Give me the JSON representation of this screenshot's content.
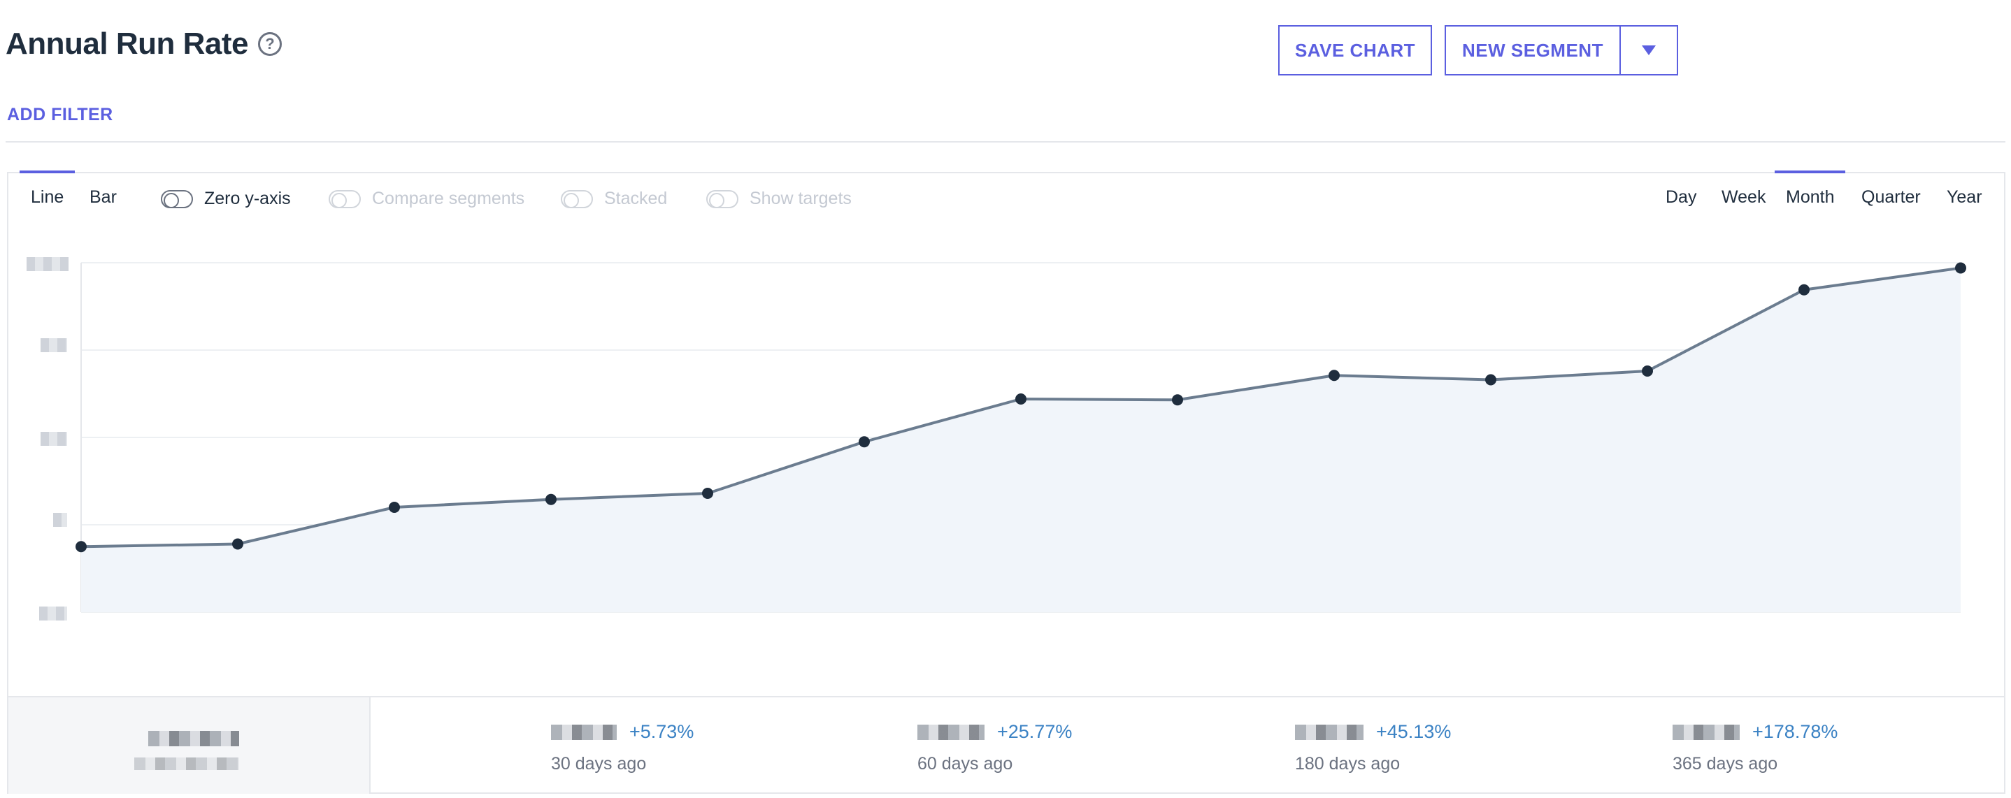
{
  "header": {
    "title": "Annual Run Rate",
    "help_icon": "?",
    "save_label": "SAVE CHART",
    "new_segment_label": "NEW SEGMENT",
    "add_filter_label": "ADD FILTER"
  },
  "toolbar": {
    "chart_types": [
      "Line",
      "Bar"
    ],
    "active_chart_type": "Line",
    "toggles": [
      {
        "label": "Zero y-axis",
        "enabled": true
      },
      {
        "label": "Compare segments",
        "enabled": false
      },
      {
        "label": "Stacked",
        "enabled": false
      },
      {
        "label": "Show targets",
        "enabled": false
      }
    ],
    "periods": [
      "Day",
      "Week",
      "Month",
      "Quarter",
      "Year"
    ],
    "active_period": "Month"
  },
  "chart_data": {
    "type": "area",
    "x": [
      1,
      2,
      3,
      4,
      5,
      6,
      7,
      8,
      9,
      10,
      11,
      12,
      13
    ],
    "series": [
      {
        "values": [
          0.75,
          0.78,
          1.2,
          1.29,
          1.36,
          1.95,
          2.44,
          2.43,
          2.71,
          2.66,
          2.76,
          3.69,
          3.94
        ]
      }
    ],
    "ylim": [
      0,
      4
    ],
    "grid": true,
    "colors": {
      "line": "#6b7c8f",
      "fill": "#f1f5fa",
      "point": "#1f2d3d"
    }
  },
  "stats": [
    {
      "change": "+5.73%",
      "label": "30 days ago"
    },
    {
      "change": "+25.77%",
      "label": "60 days ago"
    },
    {
      "change": "+45.13%",
      "label": "180 days ago"
    },
    {
      "change": "+178.78%",
      "label": "365 days ago"
    }
  ],
  "colors": {
    "accent": "#5b5fe0",
    "positive": "#3b82c4"
  }
}
